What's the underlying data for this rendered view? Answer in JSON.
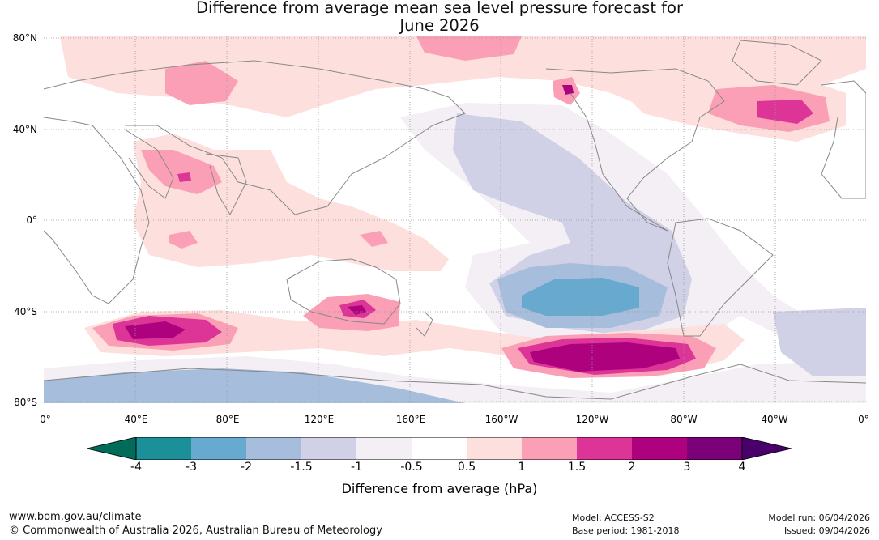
{
  "title": {
    "line1": "Difference from average mean sea level pressure forecast for",
    "line2": "June 2026"
  },
  "map": {
    "lat_labels": [
      "80°N",
      "40°N",
      "0°",
      "40°S",
      "80°S"
    ],
    "lon_labels": [
      "0°",
      "40°E",
      "80°E",
      "120°E",
      "160°E",
      "160°W",
      "120°W",
      "80°W",
      "40°W",
      "0°"
    ],
    "layer_colors": [
      "#f3eff5",
      "#d0d1e6",
      "#a6bddb",
      "#67a9cf",
      "#fde0dd",
      "#fa9fb5",
      "#dd3497",
      "#ae017e"
    ],
    "coast_color": "#888888"
  },
  "colorbar": {
    "label": "Difference from average (hPa)",
    "ticks": [
      "-4",
      "-3",
      "-2",
      "-1.5",
      "-1",
      "-0.5",
      "0.5",
      "1",
      "1.5",
      "2",
      "3",
      "4"
    ],
    "colors": [
      "#016c59",
      "#1c9099",
      "#67a9cf",
      "#a6bddb",
      "#d0d1e6",
      "#f3eff5",
      "#ffffff",
      "#fde0dd",
      "#fa9fb5",
      "#dd3497",
      "#ae017e",
      "#7a0177",
      "#49006a"
    ]
  },
  "footer": {
    "website": "www.bom.gov.au/climate",
    "copyright": "© Commonwealth of Australia 2026, Australian Bureau of Meteorology",
    "model": "Model: ACCESS-S2",
    "base_period": "Base period: 1981-2018",
    "model_run": "Model run: 06/04/2026",
    "issued": "Issued: 09/04/2026"
  }
}
